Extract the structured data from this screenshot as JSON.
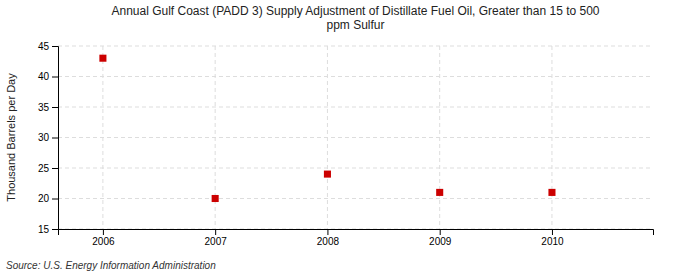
{
  "chart_data": {
    "type": "scatter",
    "title": "Annual Gulf Coast (PADD 3) Supply Adjustment of Distillate Fuel Oil, Greater than 15 to 500\nppm Sulfur",
    "y_label": "Thousand Barrels per Day",
    "annotations": [
      "Source: U.S. Energy Information Administration"
    ],
    "x": [
      2006,
      2007,
      2008,
      2009,
      2010
    ],
    "values": [
      43,
      20,
      24,
      21,
      21
    ],
    "color": "#cc0000",
    "marker": "square",
    "xlim": [
      2005.6,
      2010.9
    ],
    "xticks": [
      2006,
      2007,
      2008,
      2009,
      2010
    ],
    "ylim": [
      15,
      45
    ],
    "yticks": [
      15,
      20,
      25,
      30,
      35,
      40,
      45
    ],
    "grid": true
  }
}
